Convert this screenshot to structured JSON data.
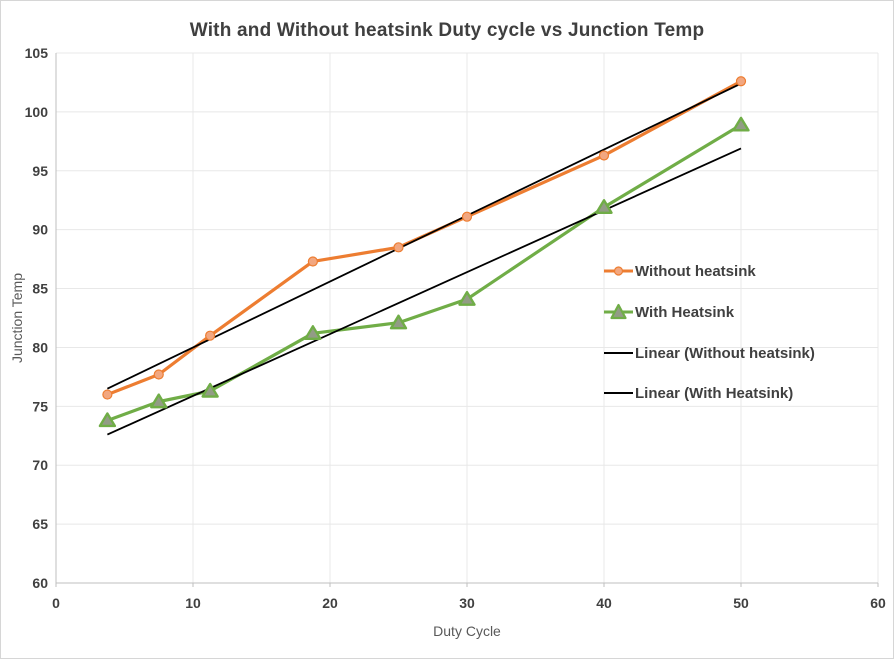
{
  "chart_data": {
    "type": "line",
    "title": "With and Without heatsink Duty cycle vs Junction Temp",
    "xlabel": "Duty Cycle",
    "ylabel": "Junction Temp",
    "xlim": [
      0,
      60
    ],
    "ylim": [
      60,
      105
    ],
    "x_ticks": [
      0,
      10,
      20,
      30,
      40,
      50,
      60
    ],
    "y_ticks": [
      60,
      65,
      70,
      75,
      80,
      85,
      90,
      95,
      100,
      105
    ],
    "grid": true,
    "legend_position": "inside-right",
    "series": [
      {
        "name": "Without heatsink",
        "key": "without-heatsink",
        "kind": "line-markers",
        "marker": "circle",
        "color": "#ED7D31",
        "marker_fill": "#F2A780",
        "x": [
          3.75,
          7.5,
          11.25,
          18.75,
          25,
          30,
          40,
          50
        ],
        "y": [
          76.0,
          77.7,
          81.0,
          87.3,
          88.5,
          91.1,
          96.3,
          102.6
        ]
      },
      {
        "name": "With Heatsink",
        "key": "with-heatsink",
        "kind": "line-markers",
        "marker": "triangle",
        "color": "#70AD47",
        "marker_fill": "#929C85",
        "x": [
          3.75,
          7.5,
          11.25,
          18.75,
          25,
          30,
          40,
          50
        ],
        "y": [
          73.8,
          75.4,
          76.3,
          81.2,
          82.1,
          84.1,
          91.9,
          98.9
        ]
      },
      {
        "name": "Linear (Without heatsink)",
        "key": "linear-without-heatsink",
        "kind": "trendline",
        "color": "#000000",
        "x": [
          3.75,
          50
        ],
        "y": [
          76.5,
          102.4
        ]
      },
      {
        "name": "Linear (With Heatsink)",
        "key": "linear-with-heatsink",
        "kind": "trendline",
        "color": "#000000",
        "x": [
          3.75,
          50
        ],
        "y": [
          72.6,
          96.9
        ]
      }
    ]
  },
  "style": {
    "grid_color": "#E8E8E8",
    "axis_color": "#BFBFBF",
    "tick_label_color": "#404040",
    "axis_title_color": "#595959",
    "title_color": "#3F3F3F",
    "background": "#FFFFFF"
  }
}
